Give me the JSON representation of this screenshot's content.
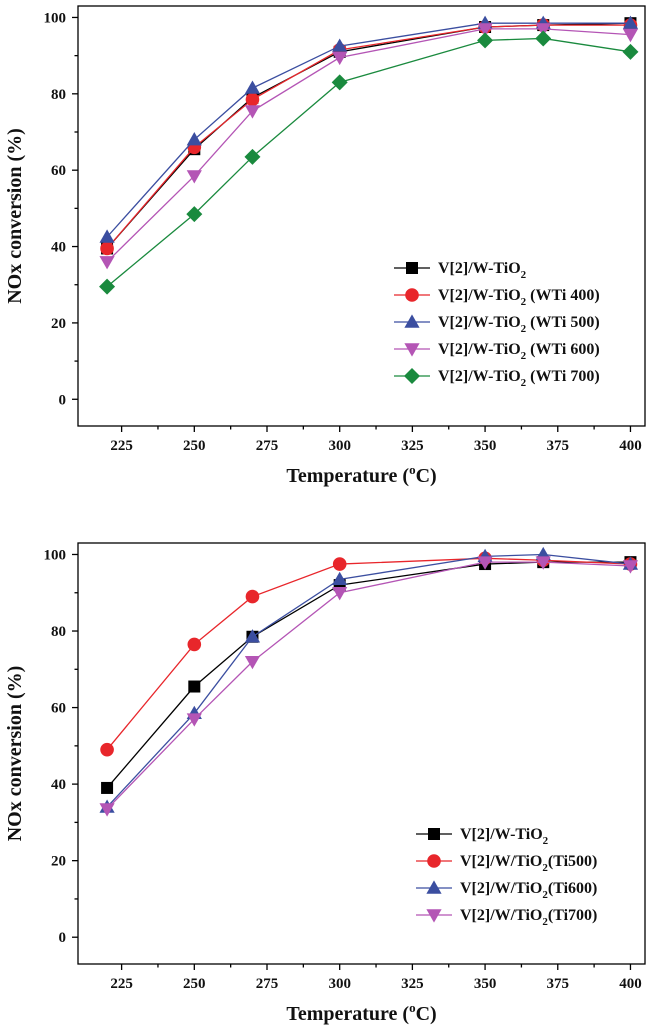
{
  "chart_data": [
    {
      "type": "line",
      "xlabel": "Temperature (",
      "xlabel_sup": "o",
      "xlabel_suffix": "C)",
      "ylabel": "NOx conversion (%)",
      "xlim": [
        210,
        405
      ],
      "ylim": [
        -7,
        103
      ],
      "xticks": [
        225,
        250,
        275,
        300,
        325,
        350,
        375,
        400
      ],
      "yticks": [
        0,
        20,
        40,
        60,
        80,
        100
      ],
      "legend_position": "lower-right",
      "x": [
        220,
        250,
        270,
        300,
        350,
        370,
        400
      ],
      "series": [
        {
          "name": "V[2]/W-TiO",
          "sub": "2",
          "suffix": "",
          "color": "#000000",
          "marker": "square",
          "values": [
            39.5,
            65.5,
            79,
            91,
            97.5,
            98,
            98.5
          ]
        },
        {
          "name": "V[2]/W-TiO",
          "sub": "2",
          "suffix": " (WTi 400)",
          "color": "#e8262b",
          "marker": "circle",
          "values": [
            39.5,
            66,
            78.5,
            91.5,
            97.5,
            98,
            98
          ]
        },
        {
          "name": "V[2]/W-TiO",
          "sub": "2",
          "suffix": " (WTi 500)",
          "color": "#3b4ea0",
          "marker": "triangle-up",
          "values": [
            42.5,
            68,
            81.5,
            92.5,
            98.5,
            98.5,
            98.5
          ]
        },
        {
          "name": "V[2]/W-TiO",
          "sub": "2",
          "suffix": " (WTi 600)",
          "color": "#b455b5",
          "marker": "triangle-down",
          "values": [
            36,
            58.5,
            75.5,
            89.5,
            97,
            97,
            95.5
          ]
        },
        {
          "name": "V[2]/W-TiO",
          "sub": "2",
          "suffix": " (WTi 700)",
          "color": "#1a8a3e",
          "marker": "diamond",
          "values": [
            29.5,
            48.5,
            63.5,
            83,
            94,
            94.5,
            91
          ]
        }
      ]
    },
    {
      "type": "line",
      "xlabel": "Temperature (",
      "xlabel_sup": "o",
      "xlabel_suffix": "C)",
      "ylabel": "NOx conversion (%)",
      "xlim": [
        210,
        405
      ],
      "ylim": [
        -7,
        103
      ],
      "xticks": [
        225,
        250,
        275,
        300,
        325,
        350,
        375,
        400
      ],
      "yticks": [
        0,
        20,
        40,
        60,
        80,
        100
      ],
      "legend_position": "lower-right",
      "x": [
        220,
        250,
        270,
        300,
        350,
        370,
        400
      ],
      "series": [
        {
          "name": "V[2]/W-TiO",
          "sub": "2",
          "suffix": "",
          "color": "#000000",
          "marker": "square",
          "values": [
            39,
            65.5,
            78.5,
            92,
            97.5,
            98,
            98
          ]
        },
        {
          "name": "V[2]/W/TiO",
          "sub": "2",
          "suffix": "(Ti500)",
          "color": "#e8262b",
          "marker": "circle",
          "values": [
            49,
            76.5,
            89,
            97.5,
            99,
            98.5,
            97.5
          ]
        },
        {
          "name": "V[2]/W/TiO",
          "sub": "2",
          "suffix": "(Ti600)",
          "color": "#3b4ea0",
          "marker": "triangle-up",
          "values": [
            34,
            58.5,
            78.5,
            93.5,
            99.5,
            100,
            97.5
          ]
        },
        {
          "name": "V[2]/W/TiO",
          "sub": "2",
          "suffix": "(Ti700)",
          "color": "#b455b5",
          "marker": "triangle-down",
          "values": [
            33.5,
            57,
            72,
            90,
            98,
            98,
            97
          ]
        }
      ]
    }
  ]
}
